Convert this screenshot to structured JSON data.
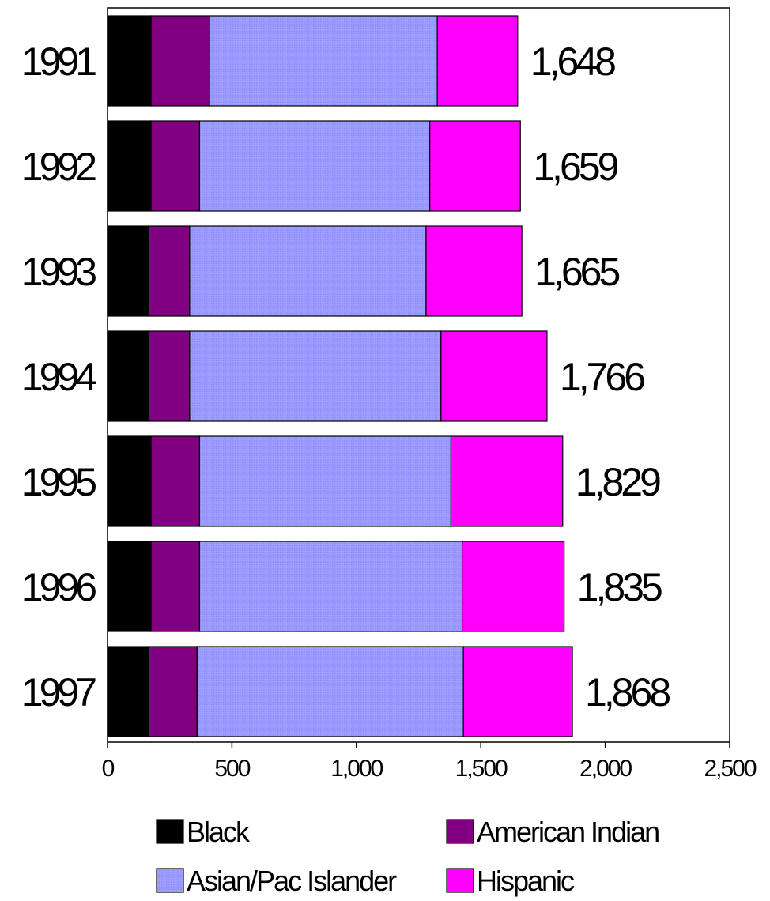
{
  "chart_data": {
    "type": "bar",
    "orientation": "horizontal",
    "stacked": true,
    "categories": [
      "1991",
      "1992",
      "1993",
      "1994",
      "1995",
      "1996",
      "1997"
    ],
    "series": [
      {
        "name": "Black",
        "color": "#000000",
        "values": [
          175,
          175,
          165,
          165,
          175,
          175,
          165
        ]
      },
      {
        "name": "American Indian",
        "color": "#800080",
        "values": [
          235,
          195,
          165,
          165,
          195,
          195,
          195
        ]
      },
      {
        "name": "Asian/Pac Islander",
        "color": "#9999ff",
        "values": [
          915,
          925,
          950,
          1010,
          1010,
          1055,
          1070
        ]
      },
      {
        "name": "Hispanic",
        "color": "#ff00ff",
        "values": [
          323,
          364,
          385,
          426,
          449,
          410,
          438
        ]
      }
    ],
    "totals": [
      1648,
      1659,
      1665,
      1766,
      1829,
      1835,
      1868
    ],
    "total_labels": [
      "1,648",
      "1,659",
      "1,665",
      "1,766",
      "1,829",
      "1,835",
      "1,868"
    ],
    "x_ticks": [
      0,
      500,
      1000,
      1500,
      2000,
      2500
    ],
    "x_tick_labels": [
      "0",
      "500",
      "1,000",
      "1,500",
      "2,000",
      "2,500"
    ],
    "xlim": [
      0,
      2500
    ],
    "title": "",
    "xlabel": "",
    "ylabel": "",
    "grid": false,
    "legend_position": "bottom"
  }
}
